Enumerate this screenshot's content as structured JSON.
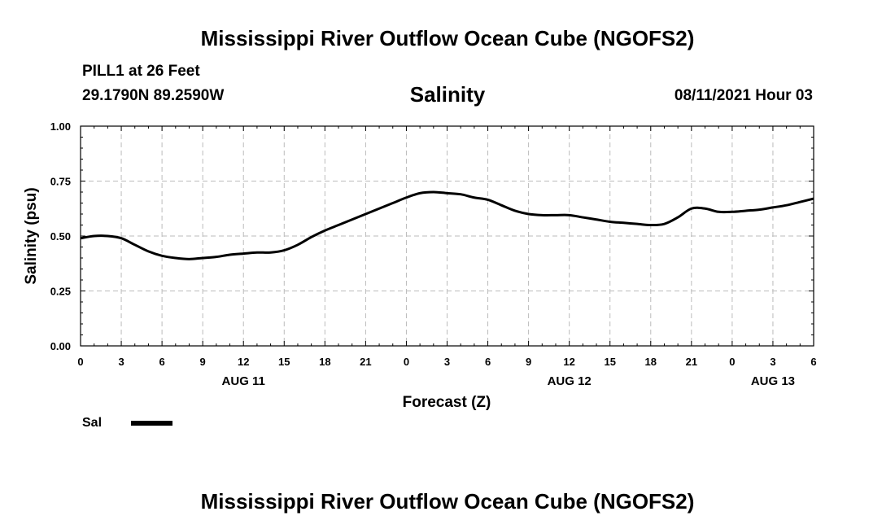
{
  "header": {
    "title_top": "Mississippi River Outflow Ocean Cube (NGOFS2)",
    "station": "PILL1 at 26 Feet",
    "coords": "29.1790N  89.2590W",
    "variable": "Salinity",
    "datetime": "08/11/2021 Hour 03",
    "title_bottom": "Mississippi River Outflow Ocean Cube (NGOFS2)"
  },
  "legend": {
    "label": "Sal"
  },
  "colors": {
    "line": "#000000",
    "grid": "#bbbbbb"
  },
  "chart_data": {
    "type": "line",
    "title": "Salinity",
    "xlabel": "Forecast (Z)",
    "ylabel": "Salinity (psu)",
    "xlim": [
      0,
      54
    ],
    "ylim": [
      0,
      1
    ],
    "x_ticks": [
      {
        "x": 0,
        "label": "0"
      },
      {
        "x": 3,
        "label": "3"
      },
      {
        "x": 6,
        "label": "6"
      },
      {
        "x": 9,
        "label": "9"
      },
      {
        "x": 12,
        "label": "12"
      },
      {
        "x": 15,
        "label": "15"
      },
      {
        "x": 18,
        "label": "18"
      },
      {
        "x": 21,
        "label": "21"
      },
      {
        "x": 24,
        "label": "0"
      },
      {
        "x": 27,
        "label": "3"
      },
      {
        "x": 30,
        "label": "6"
      },
      {
        "x": 33,
        "label": "9"
      },
      {
        "x": 36,
        "label": "12"
      },
      {
        "x": 39,
        "label": "15"
      },
      {
        "x": 42,
        "label": "18"
      },
      {
        "x": 45,
        "label": "21"
      },
      {
        "x": 48,
        "label": "0"
      },
      {
        "x": 51,
        "label": "3"
      },
      {
        "x": 54,
        "label": "6"
      }
    ],
    "date_labels": [
      {
        "x": 12,
        "label": "AUG 11"
      },
      {
        "x": 36,
        "label": "AUG 12"
      },
      {
        "x": 51,
        "label": "AUG 13"
      }
    ],
    "y_ticks": [
      {
        "y": 0,
        "label": "0.00"
      },
      {
        "y": 0.25,
        "label": "0.25"
      },
      {
        "y": 0.5,
        "label": "0.50"
      },
      {
        "y": 0.75,
        "label": "0.75"
      },
      {
        "y": 1.0,
        "label": "1.00"
      }
    ],
    "grid": true,
    "series": [
      {
        "name": "Sal",
        "x": [
          0,
          1,
          2,
          3,
          4,
          5,
          6,
          7,
          8,
          9,
          10,
          11,
          12,
          13,
          14,
          15,
          16,
          17,
          18,
          19,
          20,
          21,
          22,
          23,
          24,
          25,
          26,
          27,
          28,
          29,
          30,
          31,
          32,
          33,
          34,
          35,
          36,
          37,
          38,
          39,
          40,
          41,
          42,
          43,
          44,
          45,
          46,
          47,
          48,
          49,
          50,
          51,
          52,
          53,
          54
        ],
        "values": [
          0.49,
          0.5,
          0.5,
          0.49,
          0.46,
          0.43,
          0.41,
          0.4,
          0.395,
          0.4,
          0.405,
          0.415,
          0.42,
          0.425,
          0.425,
          0.435,
          0.46,
          0.495,
          0.525,
          0.55,
          0.575,
          0.6,
          0.625,
          0.65,
          0.675,
          0.695,
          0.7,
          0.695,
          0.69,
          0.675,
          0.665,
          0.64,
          0.615,
          0.6,
          0.595,
          0.595,
          0.595,
          0.585,
          0.575,
          0.565,
          0.56,
          0.555,
          0.55,
          0.555,
          0.585,
          0.625,
          0.625,
          0.61,
          0.61,
          0.615,
          0.62,
          0.63,
          0.64,
          0.655,
          0.67
        ]
      }
    ]
  }
}
